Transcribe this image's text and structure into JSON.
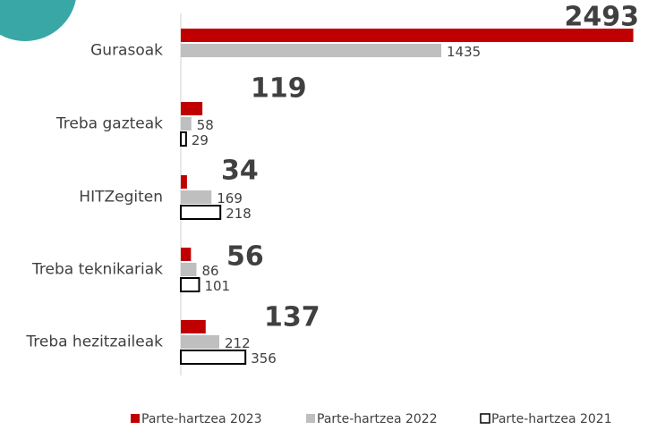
{
  "chart_data": {
    "type": "barh",
    "categories": [
      "Gurasoak",
      "Treba gazteak",
      "HITZegiten",
      "Treba teknikariak",
      "Treba hezitzaileak"
    ],
    "series": [
      {
        "name": "Parte-hartzea 2023",
        "color": "#c00000",
        "values": [
          2493,
          119,
          34,
          56,
          137
        ]
      },
      {
        "name": "Parte-hartzea 2022",
        "color": "#bfbfbf",
        "values": [
          1435,
          58,
          169,
          86,
          212
        ]
      },
      {
        "name": "Parte-hartzea 2021",
        "color": "#ffffff",
        "edgecolor": "#000000",
        "values": [
          null,
          29,
          218,
          101,
          356
        ]
      }
    ],
    "xlim": [
      0,
      2500
    ],
    "legend": "bottom"
  }
}
